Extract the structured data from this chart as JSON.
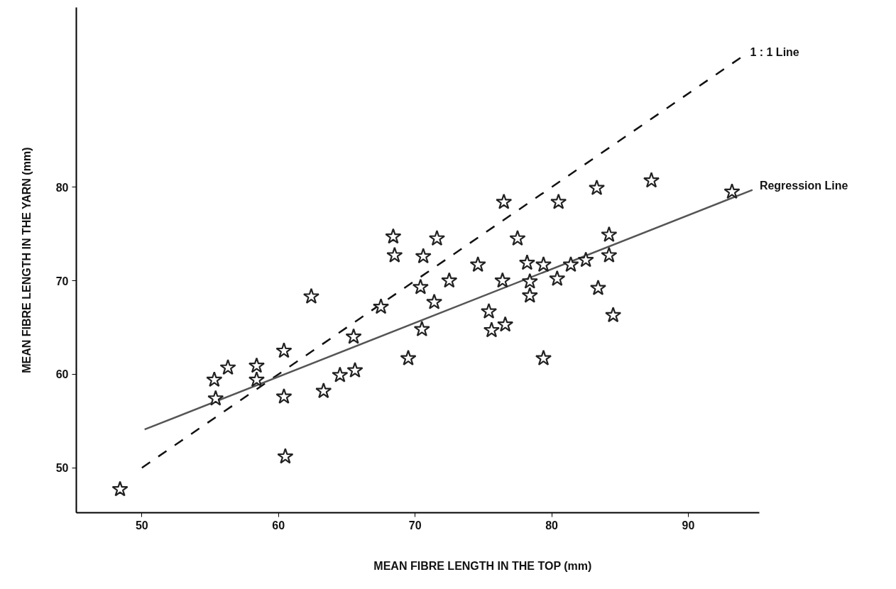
{
  "chart_data": {
    "type": "scatter",
    "xlabel": "MEAN FIBRE LENGTH IN THE TOP (mm)",
    "ylabel": "MEAN FIBRE LENGTH IN THE YARN (mm)",
    "xlim": [
      45.2,
      95.2
    ],
    "ylim": [
      45.2,
      99.2
    ],
    "xticks": [
      50,
      60,
      70,
      80,
      90
    ],
    "yticks": [
      50,
      60,
      70,
      80
    ],
    "grid": false,
    "series": [
      {
        "marker": "star",
        "color": "#222222",
        "x": [
          48.4,
          55.3,
          55.4,
          56.3,
          58.4,
          58.4,
          60.4,
          60.4,
          60.5,
          62.4,
          63.3,
          64.5,
          65.6,
          65.5,
          67.5,
          68.4,
          68.5,
          69.5,
          70.4,
          70.5,
          70.6,
          71.6,
          71.4,
          72.5,
          74.6,
          75.4,
          75.6,
          76.6,
          76.5,
          76.4,
          77.5,
          78.2,
          78.4,
          78.4,
          79.4,
          79.4,
          80.4,
          80.5,
          81.4,
          82.5,
          83.3,
          83.4,
          84.2,
          84.2,
          84.5,
          87.3,
          93.2
        ],
        "values": [
          47.7,
          59.4,
          57.4,
          60.7,
          60.9,
          59.4,
          62.5,
          57.6,
          51.2,
          68.3,
          58.2,
          59.9,
          60.4,
          64.0,
          67.2,
          74.7,
          72.7,
          61.7,
          69.3,
          64.8,
          72.6,
          74.5,
          67.7,
          70.0,
          71.7,
          66.7,
          64.7,
          65.3,
          78.4,
          70.0,
          74.5,
          71.9,
          69.9,
          68.4,
          71.7,
          61.7,
          70.2,
          78.4,
          71.7,
          72.2,
          79.9,
          69.2,
          74.9,
          72.7,
          66.3,
          80.7,
          79.5
        ]
      },
      {
        "type": "line",
        "name": "1 : 1 Line",
        "line_style": "dashed",
        "color": "#111111",
        "x": [
          50,
          94
        ],
        "values": [
          50,
          94
        ]
      },
      {
        "type": "line",
        "name": "Regression Line",
        "line_style": "solid",
        "color": "#555555",
        "x": [
          50.2,
          94.7
        ],
        "values": [
          54.1,
          79.7
        ]
      }
    ]
  }
}
